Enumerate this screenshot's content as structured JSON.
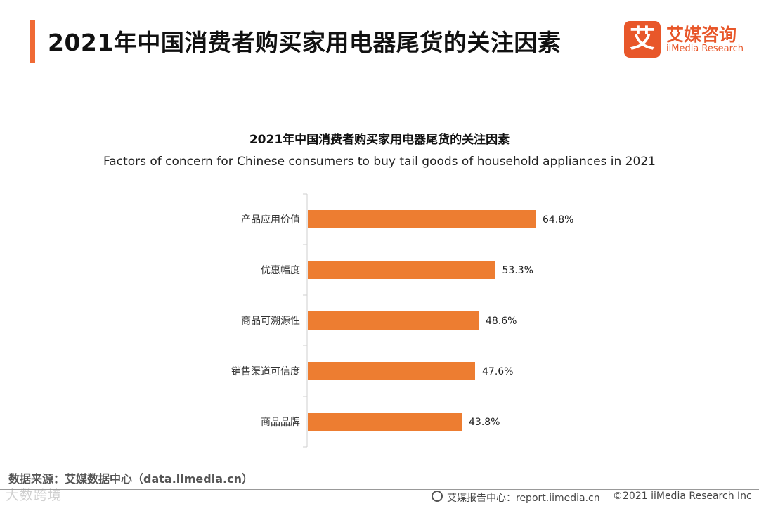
{
  "header": {
    "title": "2021年中国消费者购买家用电器尾货的关注因素",
    "accent_color": "#f06a35"
  },
  "logo": {
    "mark": "艾",
    "name_cn": "艾媒咨询",
    "name_en": "iiMedia Research",
    "color": "#e8572a"
  },
  "chart_data": {
    "type": "bar",
    "orientation": "horizontal",
    "title": "2021年中国消费者购买家用电器尾货的关注因素",
    "subtitle": "Factors of concern for Chinese consumers to buy tail goods of household appliances in 2021",
    "categories": [
      "产品应用价值",
      "优惠幅度",
      "商品可溯源性",
      "销售渠道可信度",
      "商品品牌"
    ],
    "values": [
      64.8,
      53.3,
      48.6,
      47.6,
      43.8
    ],
    "value_labels": [
      "64.8%",
      "53.3%",
      "48.6%",
      "47.6%",
      "43.8%"
    ],
    "unit": "%",
    "xlim": [
      0,
      70
    ],
    "grid": false,
    "bar_color": "#ed7d31"
  },
  "footer": {
    "source": "数据来源：艾媒数据中心（data.iimedia.cn）",
    "watermark": "大数跨境",
    "report_center": "艾媒报告中心：report.iimedia.cn",
    "copyright": "©2021  iiMedia Research  Inc"
  }
}
